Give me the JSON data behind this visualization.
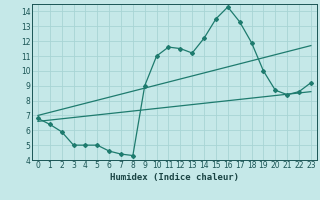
{
  "title": "",
  "xlabel": "Humidex (Indice chaleur)",
  "ylabel": "",
  "background_color": "#c5e8e8",
  "grid_color": "#a8d4d4",
  "line_color": "#1e7b6e",
  "xlim": [
    -0.5,
    23.5
  ],
  "ylim": [
    4,
    14.5
  ],
  "xticks": [
    0,
    1,
    2,
    3,
    4,
    5,
    6,
    7,
    8,
    9,
    10,
    11,
    12,
    13,
    14,
    15,
    16,
    17,
    18,
    19,
    20,
    21,
    22,
    23
  ],
  "yticks": [
    4,
    5,
    6,
    7,
    8,
    9,
    10,
    11,
    12,
    13,
    14
  ],
  "curve1_x": [
    0,
    1,
    2,
    3,
    4,
    5,
    6,
    7,
    8,
    9,
    10,
    11,
    12,
    13,
    14,
    15,
    16,
    17,
    18,
    19,
    20,
    21,
    22,
    23
  ],
  "curve1_y": [
    6.8,
    6.4,
    5.9,
    5.0,
    5.0,
    5.0,
    4.6,
    4.4,
    4.3,
    9.0,
    11.0,
    11.6,
    11.5,
    11.2,
    12.2,
    13.5,
    14.3,
    13.3,
    11.9,
    10.0,
    8.7,
    8.4,
    8.6,
    9.2
  ],
  "line2_x": [
    0,
    23
  ],
  "line2_y": [
    6.6,
    8.6
  ],
  "line3_x": [
    0,
    23
  ],
  "line3_y": [
    7.0,
    11.7
  ],
  "figsize": [
    3.2,
    2.0
  ],
  "dpi": 100
}
